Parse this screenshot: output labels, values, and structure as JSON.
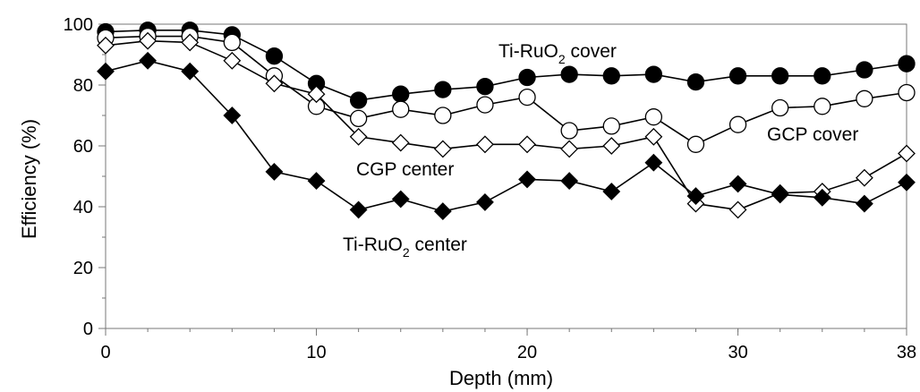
{
  "chart_data": {
    "type": "line",
    "title": "",
    "xlabel": "Depth (mm)",
    "ylabel": "Efficiency (%)",
    "xlim": [
      0,
      38
    ],
    "ylim": [
      0,
      100
    ],
    "x_ticks": [
      0,
      10,
      20,
      30,
      38
    ],
    "y_ticks": [
      0,
      20,
      40,
      60,
      80,
      100
    ],
    "grid": false,
    "legend": "none",
    "series": [
      {
        "marker": "circle-filled",
        "color": "#000000",
        "x": [
          0,
          2,
          4,
          6,
          8,
          10,
          12,
          14,
          16,
          18,
          20,
          22,
          24,
          26,
          28,
          30,
          32,
          34,
          36,
          38
        ],
        "y": [
          97.5,
          98,
          98,
          96.5,
          89.5,
          80.5,
          75,
          77,
          78.5,
          79.5,
          82.5,
          83.5,
          83,
          83.5,
          81,
          83,
          83,
          83,
          85,
          87
        ]
      },
      {
        "marker": "circle-open",
        "color": "#000000",
        "x": [
          0,
          2,
          4,
          6,
          8,
          10,
          12,
          14,
          16,
          18,
          20,
          22,
          24,
          26,
          28,
          30,
          32,
          34,
          36,
          38
        ],
        "y": [
          95.5,
          96,
          96,
          94,
          83,
          73,
          69,
          72,
          70,
          73.5,
          76,
          65,
          66.5,
          69.5,
          60.5,
          67,
          72.5,
          73,
          75.5,
          77.5
        ]
      },
      {
        "marker": "diamond-open",
        "color": "#000000",
        "x": [
          0,
          2,
          4,
          6,
          8,
          10,
          12,
          14,
          16,
          18,
          20,
          22,
          24,
          26,
          28,
          30,
          32,
          34,
          36,
          38
        ],
        "y": [
          93,
          94.5,
          94,
          88,
          80.5,
          77,
          63,
          61,
          59,
          60.5,
          60.5,
          59,
          60,
          63,
          41,
          39,
          44.5,
          45,
          49.5,
          57.5
        ]
      },
      {
        "marker": "diamond-filled",
        "color": "#000000",
        "x": [
          0,
          2,
          4,
          6,
          8,
          10,
          12,
          14,
          16,
          18,
          20,
          22,
          24,
          26,
          28,
          30,
          32,
          34,
          36,
          38
        ],
        "y": [
          84.5,
          88,
          84.5,
          70,
          51.5,
          48.5,
          39,
          42.5,
          38.5,
          41.5,
          49,
          48.5,
          45,
          54.5,
          43.5,
          47.5,
          44,
          43,
          41,
          48
        ]
      }
    ],
    "annotations": [
      {
        "text": "Ti-RuO",
        "sub": "2",
        "suffix": " cover"
      },
      {
        "text": "GCP cover"
      },
      {
        "text": "CGP center"
      },
      {
        "text": "Ti-RuO",
        "sub": "2",
        "suffix": " center"
      }
    ]
  }
}
